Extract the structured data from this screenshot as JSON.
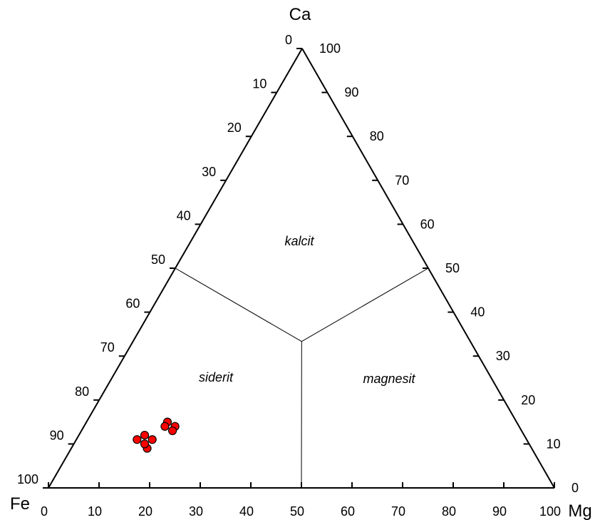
{
  "chart_data": {
    "type": "scatter",
    "subtype": "ternary",
    "title": "",
    "vertices": {
      "top": "Ca",
      "left": "Fe",
      "right": "Mg"
    },
    "axis_ticks": [
      0,
      10,
      20,
      30,
      40,
      50,
      60,
      70,
      80,
      90,
      100
    ],
    "axis_ticks_text": [
      "0",
      "10",
      "20",
      "30",
      "40",
      "50",
      "60",
      "70",
      "80",
      "90",
      "100"
    ],
    "fields": [
      {
        "name": "kalcit",
        "label": "kalcit"
      },
      {
        "name": "siderit",
        "label": "siderit"
      },
      {
        "name": "magnesit",
        "label": "magnesit"
      }
    ],
    "field_boundaries": [
      {
        "from": {
          "Ca": 50,
          "Mg": 0,
          "Fe": 50
        },
        "to": {
          "Ca": 33.3,
          "Mg": 33.3,
          "Fe": 33.3
        }
      },
      {
        "from": {
          "Ca": 50,
          "Mg": 50,
          "Fe": 0
        },
        "to": {
          "Ca": 33.3,
          "Mg": 33.3,
          "Fe": 33.3
        }
      },
      {
        "from": {
          "Ca": 0,
          "Mg": 50,
          "Fe": 50
        },
        "to": {
          "Ca": 33.3,
          "Mg": 33.3,
          "Fe": 33.3
        }
      }
    ],
    "points": [
      {
        "Ca": 15,
        "Mg": 16,
        "Fe": 69
      },
      {
        "Ca": 14,
        "Mg": 16,
        "Fe": 70
      },
      {
        "Ca": 14,
        "Mg": 18,
        "Fe": 68
      },
      {
        "Ca": 13,
        "Mg": 18,
        "Fe": 69
      },
      {
        "Ca": 11,
        "Mg": 12,
        "Fe": 77
      },
      {
        "Ca": 11,
        "Mg": 15,
        "Fe": 74
      },
      {
        "Ca": 9,
        "Mg": 15,
        "Fe": 76
      },
      {
        "Ca": 12,
        "Mg": 13,
        "Fe": 75
      },
      {
        "Ca": 10,
        "Mg": 14,
        "Fe": 76
      }
    ],
    "marker_color": "#ff0000",
    "marker_edge_color": "#000000",
    "line_color": "#000000",
    "grid": false,
    "legend": null
  }
}
